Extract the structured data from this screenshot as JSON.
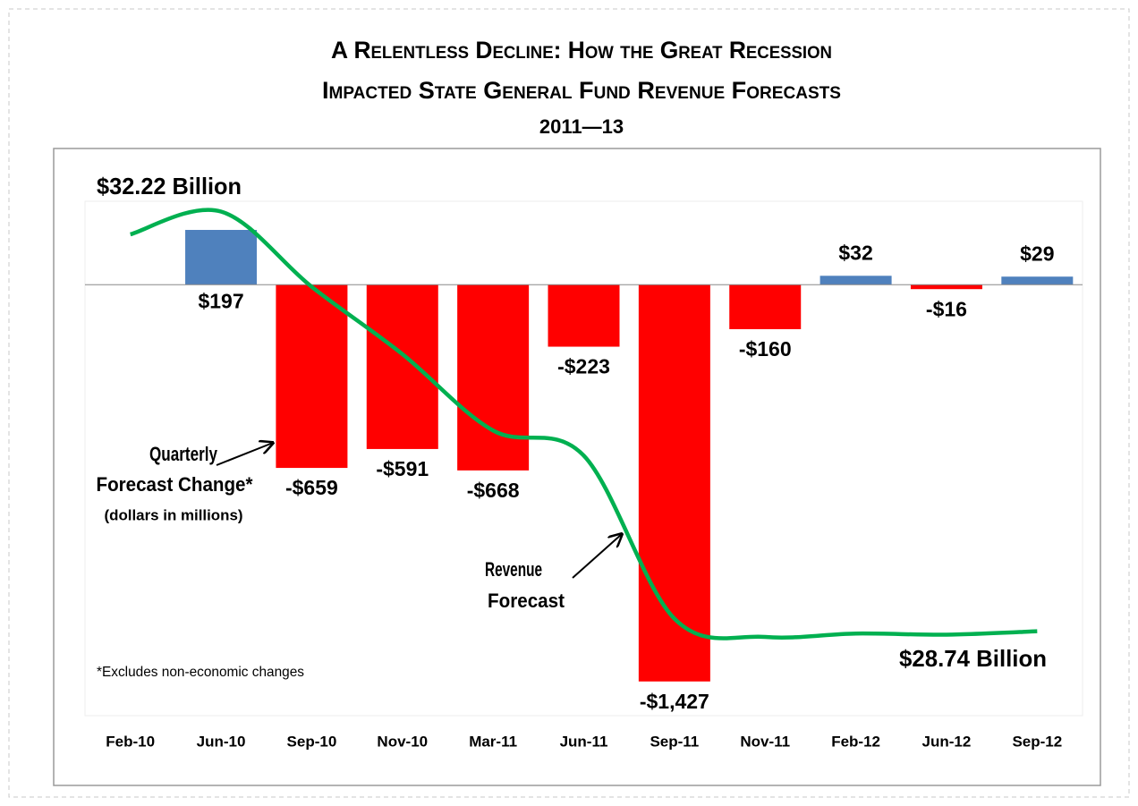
{
  "chart_data": {
    "type": "bar",
    "title": [
      "A Relentless Decline: How the Great Recession",
      "Impacted State  General Fund Revenue Forecasts"
    ],
    "subtitle": "2011—13",
    "categories": [
      "Feb-10",
      "Jun-10",
      "Sep-10",
      "Nov-10",
      "Mar-11",
      "Jun-11",
      "Sep-11",
      "Nov-11",
      "Feb-12",
      "Jun-12",
      "Sep-12"
    ],
    "series": [
      {
        "name": "Quarterly Forecast Change*",
        "type": "bar",
        "values": [
          null,
          197,
          -659,
          -591,
          -668,
          -223,
          -1427,
          -160,
          32,
          -16,
          29
        ],
        "value_labels": [
          null,
          "$197",
          "-$659",
          "-$591",
          "-$668",
          "-$223",
          "-$1,427",
          "-$160",
          "$32",
          "-$16",
          "$29"
        ],
        "positive_color": "#4f81bd",
        "negative_color": "#ff0000"
      },
      {
        "name": "Revenue Forecast",
        "type": "line",
        "axis": "y2",
        "color": "#00b050",
        "values": [
          32.22,
          32.42,
          31.76,
          31.17,
          30.5,
          30.28,
          28.85,
          28.69,
          28.72,
          28.71,
          28.74
        ]
      }
    ],
    "ylim": [
      -1550,
      300
    ],
    "y2lim": [
      28.0,
      32.51
    ],
    "annotations": [
      "$32.22 Billion",
      "$28.74 Billion",
      "Quarterly",
      "Forecast Change*",
      "(dollars in millions)",
      "Revenue",
      "Forecast",
      "*Excludes non-economic changes"
    ]
  }
}
